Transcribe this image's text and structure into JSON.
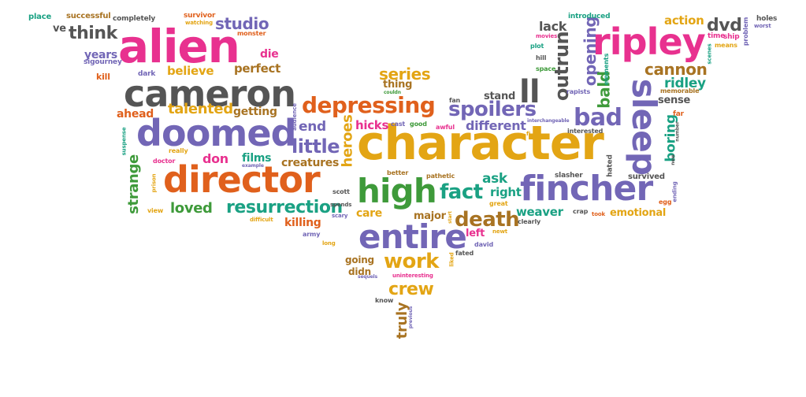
{
  "palette": {
    "gray": "#555555",
    "pink": "#e8318f",
    "purple": "#7266b6",
    "orange": "#e0601c",
    "gold": "#e3a514",
    "green": "#3e9a3a",
    "teal": "#1aa183",
    "brown": "#a87322"
  },
  "words": [
    {
      "text": "character",
      "color": "gold"
    },
    {
      "text": "director",
      "color": "orange"
    },
    {
      "text": "alien",
      "color": "pink"
    },
    {
      "text": "cameron",
      "color": "gray"
    },
    {
      "text": "doomed",
      "color": "purple"
    },
    {
      "text": "fincher",
      "color": "purple"
    },
    {
      "text": "entire",
      "color": "purple"
    },
    {
      "text": "high",
      "color": "green"
    },
    {
      "text": "ripley",
      "color": "pink"
    },
    {
      "text": "sleep",
      "color": "purple"
    },
    {
      "text": "depressing",
      "color": "orange"
    },
    {
      "text": "ll",
      "color": "gray"
    },
    {
      "text": "bad",
      "color": "purple"
    },
    {
      "text": "resurrection",
      "color": "teal"
    },
    {
      "text": "spoilers",
      "color": "purple"
    },
    {
      "text": "death",
      "color": "brown"
    },
    {
      "text": "fact",
      "color": "teal"
    },
    {
      "text": "work",
      "color": "gold"
    },
    {
      "text": "little",
      "color": "purple"
    },
    {
      "text": "think",
      "color": "gray"
    },
    {
      "text": "studio",
      "color": "purple"
    },
    {
      "text": "talented",
      "color": "gold"
    },
    {
      "text": "loved",
      "color": "green"
    },
    {
      "text": "strange",
      "color": "green"
    },
    {
      "text": "series",
      "color": "gold"
    },
    {
      "text": "outrun",
      "color": "gray"
    },
    {
      "text": "opening",
      "color": "purple"
    },
    {
      "text": "bald",
      "color": "green"
    },
    {
      "text": "cannon",
      "color": "brown"
    },
    {
      "text": "ridley",
      "color": "teal"
    },
    {
      "text": "boring",
      "color": "teal"
    },
    {
      "text": "dvd",
      "color": "gray"
    },
    {
      "text": "action",
      "color": "gold"
    },
    {
      "text": "lack",
      "color": "gray"
    },
    {
      "text": "crew",
      "color": "gold"
    },
    {
      "text": "truly",
      "color": "brown"
    },
    {
      "text": "heroes",
      "color": "gold"
    },
    {
      "text": "weaver",
      "color": "teal"
    },
    {
      "text": "killing",
      "color": "orange"
    },
    {
      "text": "creatures",
      "color": "brown"
    },
    {
      "text": "films",
      "color": "teal"
    },
    {
      "text": "don",
      "color": "pink"
    },
    {
      "text": "end",
      "color": "purple"
    },
    {
      "text": "hicks",
      "color": "pink"
    },
    {
      "text": "different",
      "color": "purple"
    },
    {
      "text": "ask",
      "color": "teal"
    },
    {
      "text": "right",
      "color": "teal"
    },
    {
      "text": "care",
      "color": "gold"
    },
    {
      "text": "emotional",
      "color": "gold"
    },
    {
      "text": "perfect",
      "color": "brown"
    },
    {
      "text": "believe",
      "color": "gold"
    },
    {
      "text": "years",
      "color": "purple"
    },
    {
      "text": "getting",
      "color": "brown"
    },
    {
      "text": "ahead",
      "color": "orange"
    },
    {
      "text": "die",
      "color": "pink"
    },
    {
      "text": "ve",
      "color": "gray"
    },
    {
      "text": "kill",
      "color": "orange"
    },
    {
      "text": "dark",
      "color": "purple"
    },
    {
      "text": "stand",
      "color": "gray"
    },
    {
      "text": "sense",
      "color": "gray"
    },
    {
      "text": "memorable",
      "color": "brown"
    },
    {
      "text": "thing",
      "color": "brown"
    },
    {
      "text": "major",
      "color": "brown"
    },
    {
      "text": "left",
      "color": "pink"
    },
    {
      "text": "going",
      "color": "brown"
    },
    {
      "text": "didn",
      "color": "brown"
    },
    {
      "text": "hated",
      "color": "gray"
    },
    {
      "text": "survived",
      "color": "gray"
    },
    {
      "text": "place",
      "color": "teal"
    },
    {
      "text": "successful",
      "color": "brown"
    },
    {
      "text": "completely",
      "color": "gray"
    },
    {
      "text": "survivor",
      "color": "orange"
    },
    {
      "text": "watching",
      "color": "gold"
    },
    {
      "text": "monster",
      "color": "orange"
    },
    {
      "text": "elements",
      "color": "teal"
    },
    {
      "text": "introduced",
      "color": "teal"
    },
    {
      "text": "holes",
      "color": "gray"
    },
    {
      "text": "worst",
      "color": "purple"
    },
    {
      "text": "problem",
      "color": "purple"
    },
    {
      "text": "time",
      "color": "pink"
    },
    {
      "text": "ship",
      "color": "pink"
    },
    {
      "text": "means",
      "color": "gold"
    },
    {
      "text": "scenes",
      "color": "teal"
    },
    {
      "text": "movies",
      "color": "pink"
    },
    {
      "text": "plot",
      "color": "teal"
    },
    {
      "text": "hill",
      "color": "gray"
    },
    {
      "text": "space",
      "color": "green"
    },
    {
      "text": "rapists",
      "color": "purple"
    },
    {
      "text": "fan",
      "color": "gray"
    },
    {
      "text": "couldn",
      "color": "green"
    },
    {
      "text": "audience",
      "color": "purple"
    },
    {
      "text": "cast",
      "color": "purple"
    },
    {
      "text": "good",
      "color": "green"
    },
    {
      "text": "awful",
      "color": "pink"
    },
    {
      "text": "interchangeable",
      "color": "purple"
    },
    {
      "text": "fi",
      "color": "gold"
    },
    {
      "text": "interested",
      "color": "gray"
    },
    {
      "text": "far",
      "color": "orange"
    },
    {
      "text": "number",
      "color": "gray"
    },
    {
      "text": "new",
      "color": "gray"
    },
    {
      "text": "ending",
      "color": "purple"
    },
    {
      "text": "egg",
      "color": "orange"
    },
    {
      "text": "slasher",
      "color": "gray"
    },
    {
      "text": "crap",
      "color": "gray"
    },
    {
      "text": "took",
      "color": "orange"
    },
    {
      "text": "clearly",
      "color": "gray"
    },
    {
      "text": "newt",
      "color": "gold"
    },
    {
      "text": "fated",
      "color": "gray"
    },
    {
      "text": "david",
      "color": "purple"
    },
    {
      "text": "liked",
      "color": "gold"
    },
    {
      "text": "start",
      "color": "gold"
    },
    {
      "text": "great",
      "color": "gold"
    },
    {
      "text": "pathetic",
      "color": "brown"
    },
    {
      "text": "better",
      "color": "brown"
    },
    {
      "text": "scott",
      "color": "gray"
    },
    {
      "text": "spends",
      "color": "gray"
    },
    {
      "text": "scary",
      "color": "purple"
    },
    {
      "text": "army",
      "color": "purple"
    },
    {
      "text": "long",
      "color": "gold"
    },
    {
      "text": "difficult",
      "color": "gold"
    },
    {
      "text": "prison",
      "color": "gold"
    },
    {
      "text": "doctor",
      "color": "pink"
    },
    {
      "text": "example",
      "color": "purple"
    },
    {
      "text": "really",
      "color": "gold"
    },
    {
      "text": "suspense",
      "color": "teal"
    },
    {
      "text": "view",
      "color": "gold"
    },
    {
      "text": "sigourney",
      "color": "purple"
    },
    {
      "text": "sequels",
      "color": "purple"
    },
    {
      "text": "uninteresting",
      "color": "pink"
    },
    {
      "text": "know",
      "color": "gray"
    },
    {
      "text": "previous",
      "color": "purple"
    }
  ]
}
